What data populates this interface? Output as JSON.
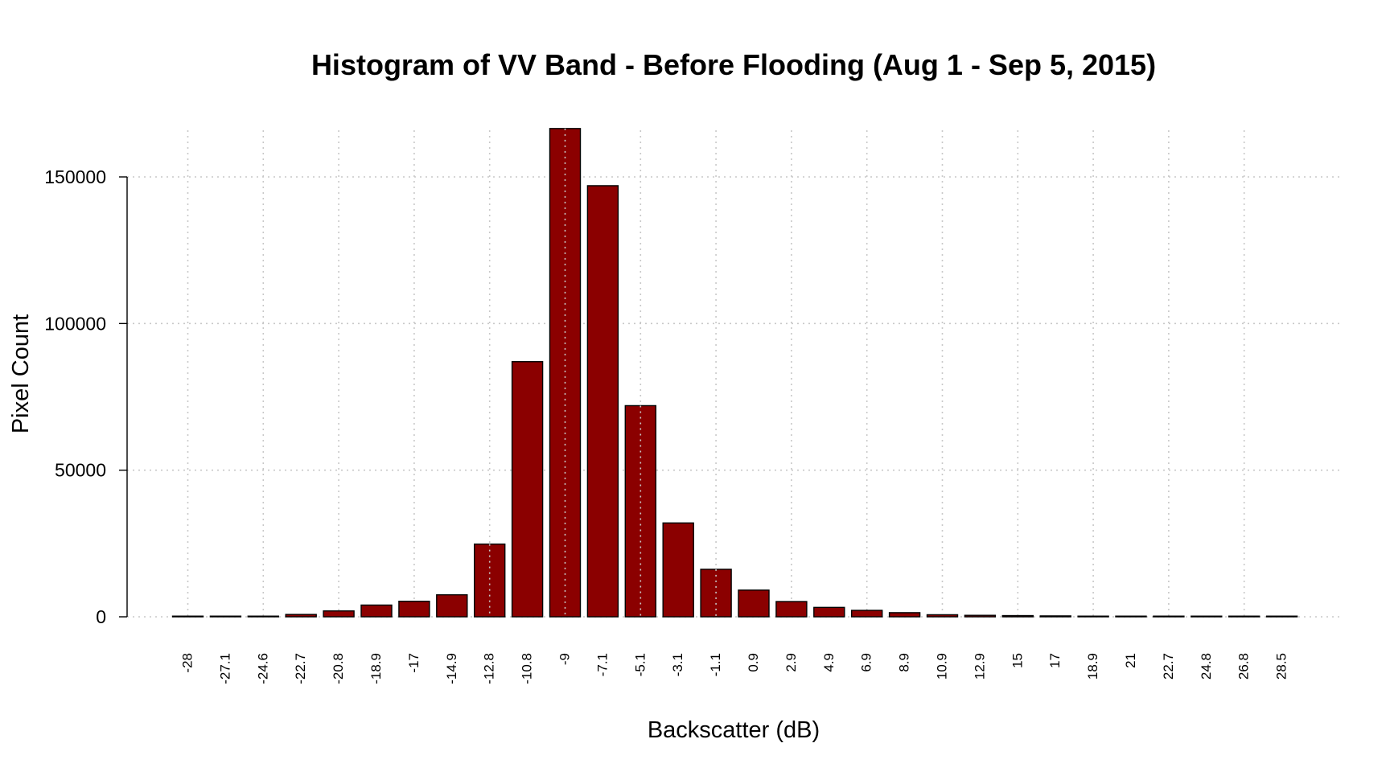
{
  "chart_data": {
    "type": "bar",
    "title": "Histogram of VV Band - Before Flooding (Aug 1 - Sep 5, 2015)",
    "xlabel": "Backscatter (dB)",
    "ylabel": "Pixel Count",
    "categories": [
      "-28",
      "-27.1",
      "-24.6",
      "-22.7",
      "-20.8",
      "-18.9",
      "-17",
      "-14.9",
      "-12.8",
      "-10.8",
      "-9",
      "-7.1",
      "-5.1",
      "-3.1",
      "-1.1",
      "0.9",
      "2.9",
      "4.9",
      "6.9",
      "8.9",
      "10.9",
      "12.9",
      "15",
      "17",
      "18.9",
      "21",
      "22.7",
      "24.8",
      "26.8",
      "28.5"
    ],
    "values": [
      100,
      100,
      150,
      800,
      2000,
      4000,
      5300,
      7500,
      24800,
      87000,
      166500,
      147000,
      72000,
      32000,
      16200,
      9100,
      5200,
      3200,
      2200,
      1400,
      700,
      500,
      400,
      300,
      150,
      100,
      80,
      60,
      50,
      40
    ],
    "ylim": [
      0,
      167000
    ],
    "yticks": [
      0,
      50000,
      100000,
      150000
    ],
    "ytick_labels": [
      "0",
      "50000",
      "100000",
      "150000"
    ],
    "grid": true,
    "bar_color": "#8B0000",
    "edge_color": "#000000",
    "grid_color": "#c8c8c8"
  }
}
